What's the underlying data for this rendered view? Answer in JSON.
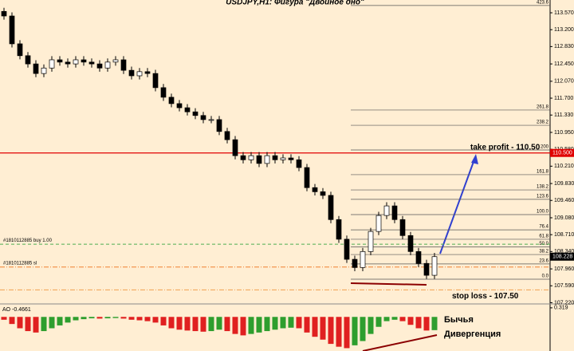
{
  "chart_data": {
    "type": "candlestick",
    "title": "USDJPY,H1: Фигура \"Двойное дно\"",
    "ylim": [
      107.21,
      113.85
    ],
    "yticks": [
      {
        "value": 113.57,
        "label": "113.570"
      },
      {
        "value": 113.2,
        "label": "113.200"
      },
      {
        "value": 112.83,
        "label": "112.830"
      },
      {
        "value": 112.45,
        "label": "112.450"
      },
      {
        "value": 112.07,
        "label": "112.070"
      },
      {
        "value": 111.7,
        "label": "111.700"
      },
      {
        "value": 111.33,
        "label": "111.330"
      },
      {
        "value": 110.95,
        "label": "110.950"
      },
      {
        "value": 110.58,
        "label": "110.580"
      },
      {
        "value": 110.21,
        "label": "110.210"
      },
      {
        "value": 109.83,
        "label": "109.830"
      },
      {
        "value": 109.46,
        "label": "109.460"
      },
      {
        "value": 109.08,
        "label": "109.080"
      },
      {
        "value": 108.71,
        "label": "108.710"
      },
      {
        "value": 108.34,
        "label": "108.340"
      },
      {
        "value": 107.96,
        "label": "107.960"
      },
      {
        "value": 107.59,
        "label": "107.590"
      },
      {
        "value": 107.22,
        "label": "107.220"
      }
    ],
    "open": [
      113.6,
      113.5,
      112.89,
      112.63,
      112.45,
      112.24,
      112.36,
      112.54,
      112.49,
      112.45,
      112.54,
      112.49,
      112.45,
      112.36,
      112.49,
      112.54,
      112.31,
      112.19,
      112.28,
      112.24,
      111.93,
      111.72,
      111.58,
      111.49,
      111.4,
      111.32,
      111.23,
      111.23,
      110.97,
      110.79,
      110.44,
      110.35,
      110.44,
      110.27,
      110.44,
      110.35,
      110.39,
      110.35,
      110.18,
      109.74,
      109.65,
      109.57,
      109.04,
      108.61,
      108.17,
      107.99,
      108.34,
      108.78,
      109.13,
      109.34,
      109.04,
      108.69,
      108.34,
      108.08,
      107.82
    ],
    "high": [
      113.68,
      113.58,
      112.97,
      112.71,
      112.53,
      112.44,
      112.62,
      112.62,
      112.57,
      112.62,
      112.62,
      112.57,
      112.53,
      112.57,
      112.62,
      112.62,
      112.39,
      112.36,
      112.36,
      112.32,
      112.01,
      111.8,
      111.66,
      111.57,
      111.48,
      111.4,
      111.31,
      111.31,
      111.05,
      110.87,
      110.52,
      110.52,
      110.52,
      110.52,
      110.52,
      110.47,
      110.47,
      110.43,
      110.26,
      109.82,
      109.73,
      109.65,
      109.12,
      108.69,
      108.25,
      108.42,
      108.86,
      109.21,
      109.42,
      109.42,
      109.12,
      108.77,
      108.42,
      108.16,
      108.31
    ],
    "low": [
      113.42,
      112.81,
      112.55,
      112.37,
      112.16,
      112.16,
      112.28,
      112.41,
      112.37,
      112.37,
      112.41,
      112.37,
      112.28,
      112.28,
      112.41,
      112.23,
      112.11,
      112.11,
      112.16,
      111.85,
      111.64,
      111.5,
      111.41,
      111.32,
      111.24,
      111.15,
      111.15,
      110.89,
      110.71,
      110.36,
      110.27,
      110.27,
      110.19,
      110.19,
      110.27,
      110.27,
      110.27,
      110.1,
      109.66,
      109.57,
      109.49,
      108.96,
      108.53,
      108.09,
      107.91,
      107.91,
      108.26,
      108.7,
      109.05,
      108.96,
      108.61,
      108.26,
      108.0,
      107.74,
      107.74
    ],
    "close": [
      113.5,
      112.89,
      112.63,
      112.45,
      112.24,
      112.36,
      112.54,
      112.49,
      112.45,
      112.54,
      112.49,
      112.45,
      112.36,
      112.49,
      112.54,
      112.31,
      112.19,
      112.28,
      112.24,
      111.93,
      111.72,
      111.58,
      111.49,
      111.4,
      111.32,
      111.23,
      111.23,
      110.97,
      110.79,
      110.44,
      110.35,
      110.44,
      110.27,
      110.44,
      110.35,
      110.39,
      110.35,
      110.18,
      109.74,
      109.65,
      109.57,
      109.04,
      108.61,
      108.17,
      107.99,
      108.34,
      108.78,
      109.13,
      109.34,
      109.04,
      108.69,
      108.34,
      108.08,
      107.82,
      108.228
    ],
    "current_price": 108.228,
    "take_profit": {
      "text": "take profit - 110.50",
      "price": {
        "value": 110.5,
        "label": "110.500"
      },
      "color": "#e00000"
    },
    "stop_loss": {
      "text": "stop loss - 107.50",
      "price": 107.5,
      "color": "#f0a050"
    },
    "orders": [
      {
        "text": "#1810112885 buy 1.00",
        "price": 108.5,
        "color": "#4caf50"
      },
      {
        "text": "#1810112885 sl",
        "price": 108.0,
        "color": "#f08030"
      }
    ],
    "fibo_levels": [
      {
        "value": 0,
        "label": "0.0"
      },
      23.6,
      38.2,
      {
        "value": 50,
        "label": "50.0"
      },
      61.8,
      76.4,
      {
        "value": 100,
        "label": "100.0"
      },
      123.6,
      138.2,
      161.8,
      200,
      238.2,
      261.8,
      423.6
    ],
    "indicator": {
      "label": "AO -0.4661",
      "ylim": [
        -1.2,
        0.4
      ],
      "yticks": [
        0.319
      ],
      "up_color": "#2e9e2e",
      "down_color": "#e02020",
      "values": [
        -0.1,
        -0.25,
        -0.4,
        -0.5,
        -0.55,
        -0.5,
        -0.4,
        -0.3,
        -0.2,
        -0.12,
        -0.08,
        -0.05,
        -0.06,
        -0.05,
        -0.04,
        -0.06,
        -0.1,
        -0.12,
        -0.15,
        -0.2,
        -0.3,
        -0.4,
        -0.45,
        -0.48,
        -0.5,
        -0.52,
        -0.5,
        -0.45,
        -0.5,
        -0.6,
        -0.65,
        -0.6,
        -0.55,
        -0.5,
        -0.45,
        -0.4,
        -0.38,
        -0.4,
        -0.55,
        -0.7,
        -0.8,
        -0.95,
        -1.05,
        -1.1,
        -1.0,
        -0.85,
        -0.6,
        -0.35,
        -0.15,
        -0.1,
        -0.15,
        -0.28,
        -0.4,
        -0.48,
        -0.4661
      ]
    },
    "annotation": [
      "Бычья",
      "Дивергенция"
    ]
  }
}
